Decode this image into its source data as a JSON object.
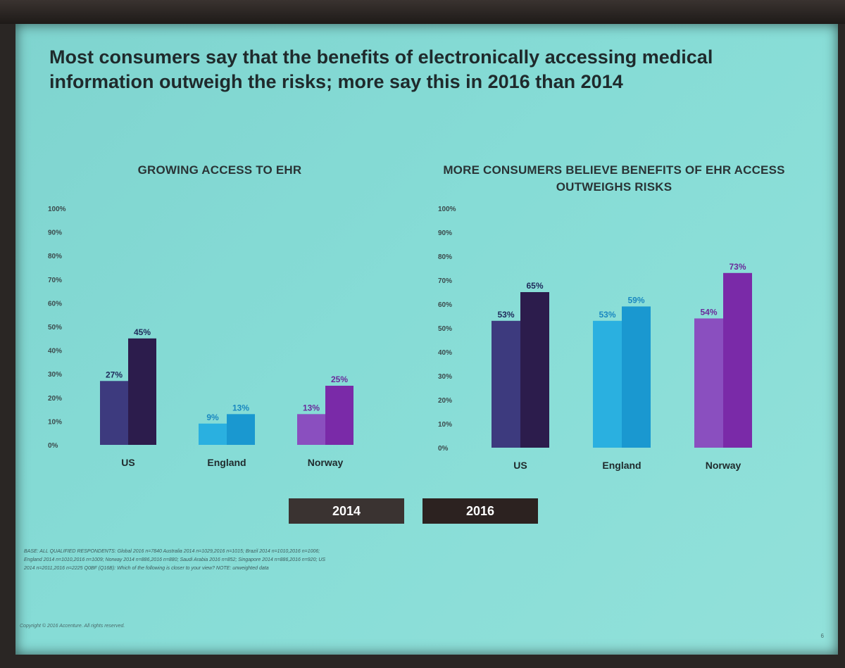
{
  "slide": {
    "headline": "Most consumers say that the benefits of electronically accessing medical information outweigh the risks; more say this in 2016 than 2014",
    "footnote": "BASE: ALL QUALIFIED RESPONDENTS: Global 2016 n=7840 Australia 2014 n=1029,2016 n=1015; Brazil 2014 n=1010,2016 n=1006; England 2014 n=1010,2016 n=1009; Norway 2014 n=886,2016 n=880; Saudi Arabia 2016 n=852; Singapore 2014 n=886,2016 n=920; US 2014 n=2011,2016 n=2225 Q0BF (Q16B): Which of the following is closer to your view? NOTE: unweighted data",
    "copyright": "Copyright © 2016 Accenture. All rights reserved.",
    "page_number": "6"
  },
  "legend": [
    {
      "label": "2014",
      "color": "#3a3331"
    },
    {
      "label": "2016",
      "color": "#2c2220"
    }
  ],
  "chart_data": [
    {
      "type": "bar",
      "title": "GROWING ACCESS TO EHR",
      "categories": [
        "US",
        "England",
        "Norway"
      ],
      "series": [
        {
          "name": "2014",
          "values": [
            27,
            9,
            13
          ],
          "labels": [
            "27%",
            "9%",
            "13%"
          ]
        },
        {
          "name": "2016",
          "values": [
            45,
            13,
            25
          ],
          "labels": [
            "45%",
            "13%",
            "25%"
          ]
        }
      ],
      "colors_2014": [
        "#3d3a7e",
        "#2ab0e0",
        "#8a4fbf"
      ],
      "colors_2016": [
        "#2c1c4c",
        "#1a98d0",
        "#7a2aa8"
      ],
      "label_colors": [
        "#1e2a5a",
        "#1a88c0",
        "#6a2a9a"
      ],
      "ylim": [
        0,
        100
      ],
      "yticks": [
        "0%",
        "10%",
        "20%",
        "30%",
        "40%",
        "50%",
        "60%",
        "70%",
        "80%",
        "90%",
        "100%"
      ],
      "xlabel": "",
      "ylabel": ""
    },
    {
      "type": "bar",
      "title": "MORE CONSUMERS BELIEVE BENEFITS OF EHR ACCESS OUTWEIGHS RISKS",
      "categories": [
        "US",
        "England",
        "Norway"
      ],
      "series": [
        {
          "name": "2014",
          "values": [
            53,
            53,
            54
          ],
          "labels": [
            "53%",
            "53%",
            "54%"
          ]
        },
        {
          "name": "2016",
          "values": [
            65,
            59,
            73
          ],
          "labels": [
            "65%",
            "59%",
            "73%"
          ]
        }
      ],
      "colors_2014": [
        "#3d3a7e",
        "#2ab0e0",
        "#8a4fbf"
      ],
      "colors_2016": [
        "#2c1c4c",
        "#1a98d0",
        "#7a2aa8"
      ],
      "label_colors": [
        "#1e2a5a",
        "#1a88c0",
        "#6a2a9a"
      ],
      "ylim": [
        0,
        100
      ],
      "yticks": [
        "0%",
        "10%",
        "20%",
        "30%",
        "40%",
        "50%",
        "60%",
        "70%",
        "80%",
        "90%",
        "100%"
      ],
      "xlabel": "",
      "ylabel": ""
    }
  ]
}
